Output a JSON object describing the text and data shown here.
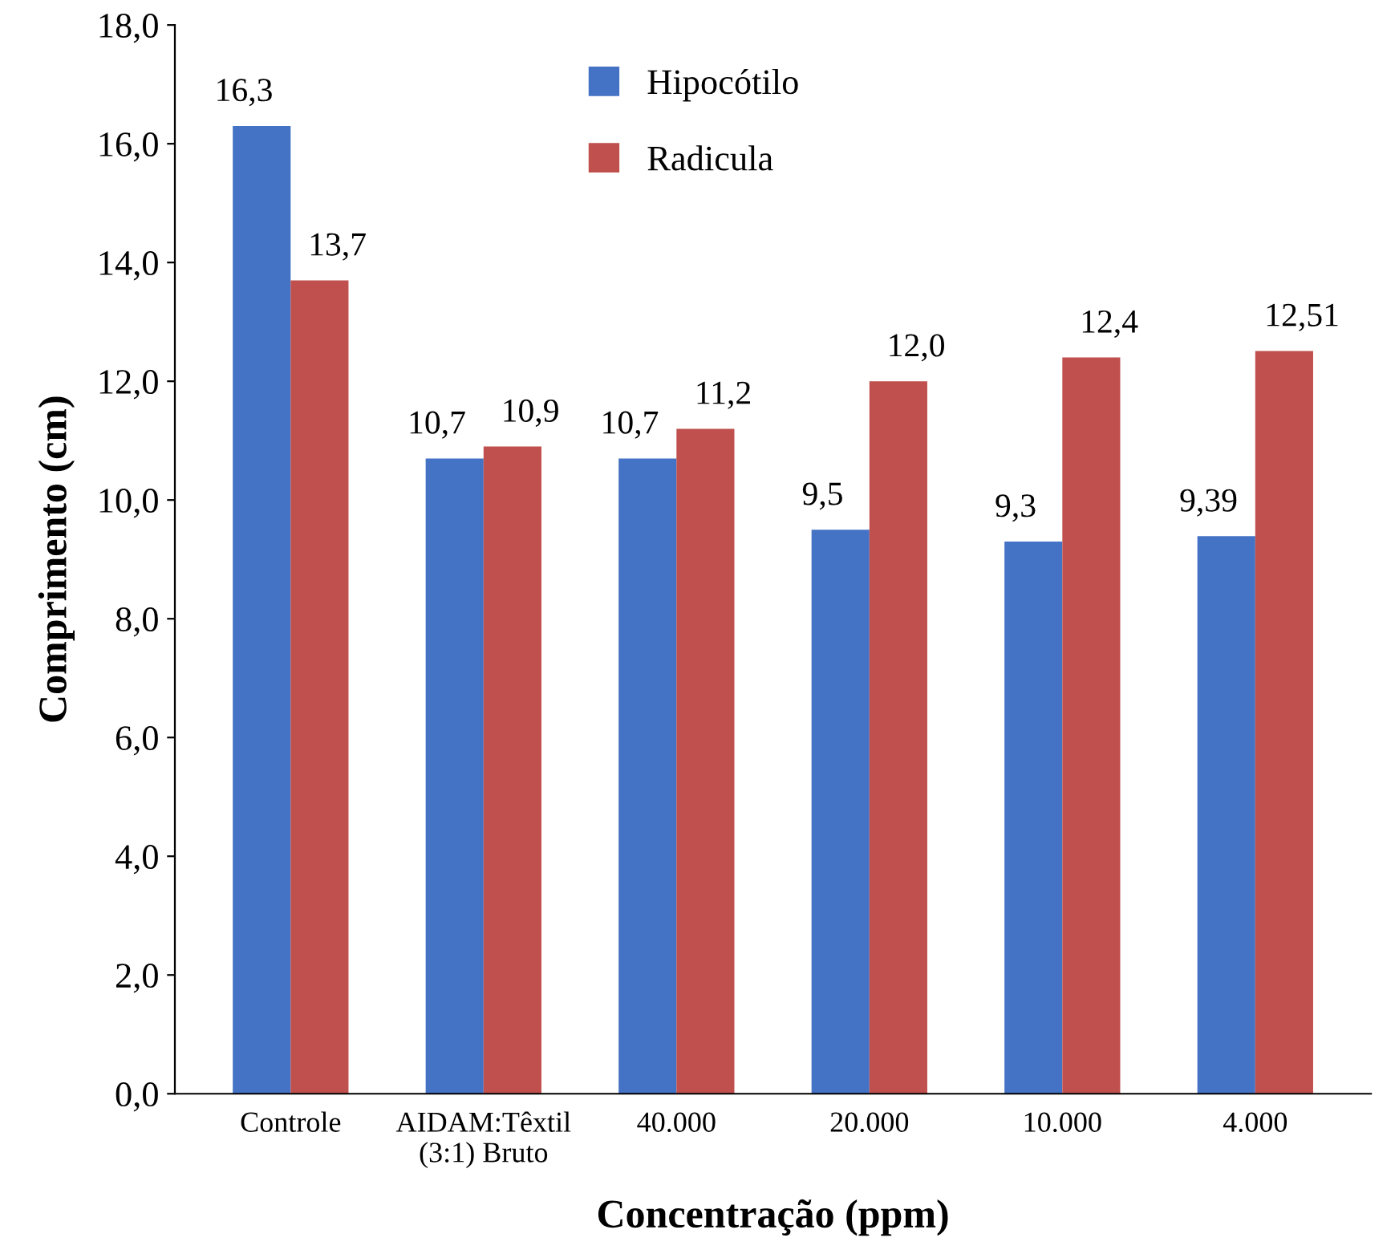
{
  "chart_data": {
    "type": "bar",
    "xlabel": "Concentração (ppm)",
    "ylabel": "Comprimento (cm)",
    "categories": [
      "Controle",
      "AIDAM:Têxtil\n(3:1) Bruto",
      "40.000",
      "20.000",
      "10.000",
      "4.000"
    ],
    "series": [
      {
        "name": "Hipocótilo",
        "color": "#4472c4",
        "values": [
          16.3,
          10.7,
          10.7,
          9.5,
          9.3,
          9.39
        ],
        "value_labels": [
          "16,3",
          "10,7",
          "10,7",
          "9,5",
          "9,3",
          "9,39"
        ]
      },
      {
        "name": "Radicula",
        "color": "#c0504d",
        "values": [
          13.7,
          10.9,
          11.2,
          12.0,
          12.4,
          12.51
        ],
        "value_labels": [
          "13,7",
          "10,9",
          "11,2",
          "12,0",
          "12,4",
          "12,51"
        ]
      }
    ],
    "ylim": [
      0,
      18
    ],
    "yticks": [
      {
        "value": 0,
        "label": "0,0"
      },
      {
        "value": 2,
        "label": "2,0"
      },
      {
        "value": 4,
        "label": "4,0"
      },
      {
        "value": 6,
        "label": "6,0"
      },
      {
        "value": 8,
        "label": "8,0"
      },
      {
        "value": 10,
        "label": "10,0"
      },
      {
        "value": 12,
        "label": "12,0"
      },
      {
        "value": 14,
        "label": "14,0"
      },
      {
        "value": 16,
        "label": "16,0"
      },
      {
        "value": 18,
        "label": "18,0"
      }
    ],
    "grid": false,
    "legend": "top"
  }
}
